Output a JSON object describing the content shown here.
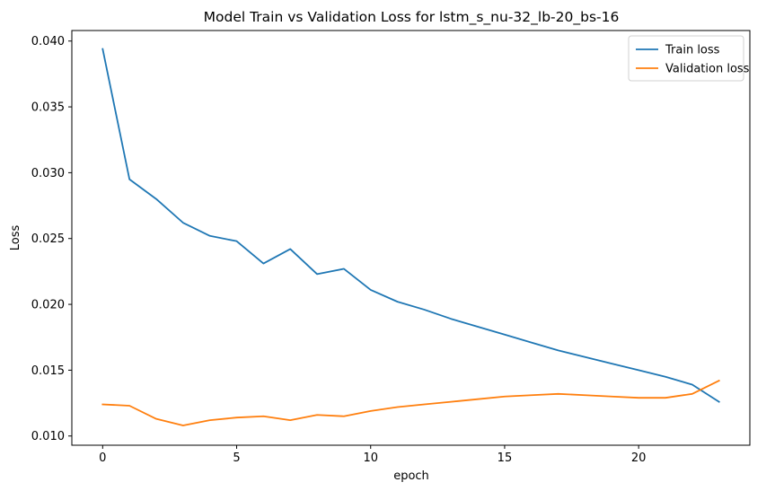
{
  "chart_data": {
    "type": "line",
    "title": "Model Train vs Validation Loss for lstm_s_nu-32_lb-20_bs-16",
    "xlabel": "epoch",
    "ylabel": "Loss",
    "xlim": [
      -1.15,
      24.15
    ],
    "ylim": [
      0.0093,
      0.0408
    ],
    "xticks": [
      0,
      5,
      10,
      15,
      20
    ],
    "yticks": [
      0.01,
      0.015,
      0.02,
      0.025,
      0.03,
      0.035,
      0.04
    ],
    "xtick_labels": [
      "0",
      "5",
      "10",
      "15",
      "20"
    ],
    "ytick_labels": [
      "0.010",
      "0.015",
      "0.020",
      "0.025",
      "0.030",
      "0.035",
      "0.040"
    ],
    "grid": false,
    "legend_position": "top-right",
    "x": [
      0,
      1,
      2,
      3,
      4,
      5,
      6,
      7,
      8,
      9,
      10,
      11,
      12,
      13,
      14,
      15,
      16,
      17,
      18,
      19,
      20,
      21,
      22,
      23
    ],
    "series": [
      {
        "name": "Train loss",
        "color": "#1f77b4",
        "values": [
          0.0394,
          0.0295,
          0.028,
          0.0262,
          0.0252,
          0.0248,
          0.0231,
          0.0242,
          0.0223,
          0.0227,
          0.0211,
          0.0202,
          0.0196,
          0.0189,
          0.0183,
          0.0177,
          0.0171,
          0.0165,
          0.016,
          0.0155,
          0.015,
          0.0145,
          0.0139,
          0.0126
        ]
      },
      {
        "name": "Validation loss",
        "color": "#ff7f0e",
        "values": [
          0.0124,
          0.0123,
          0.0113,
          0.0108,
          0.0112,
          0.0114,
          0.0115,
          0.0112,
          0.0116,
          0.0115,
          0.0119,
          0.0122,
          0.0124,
          0.0126,
          0.0128,
          0.013,
          0.0131,
          0.0132,
          0.0131,
          0.013,
          0.0129,
          0.0129,
          0.0132,
          0.0142
        ]
      }
    ]
  }
}
